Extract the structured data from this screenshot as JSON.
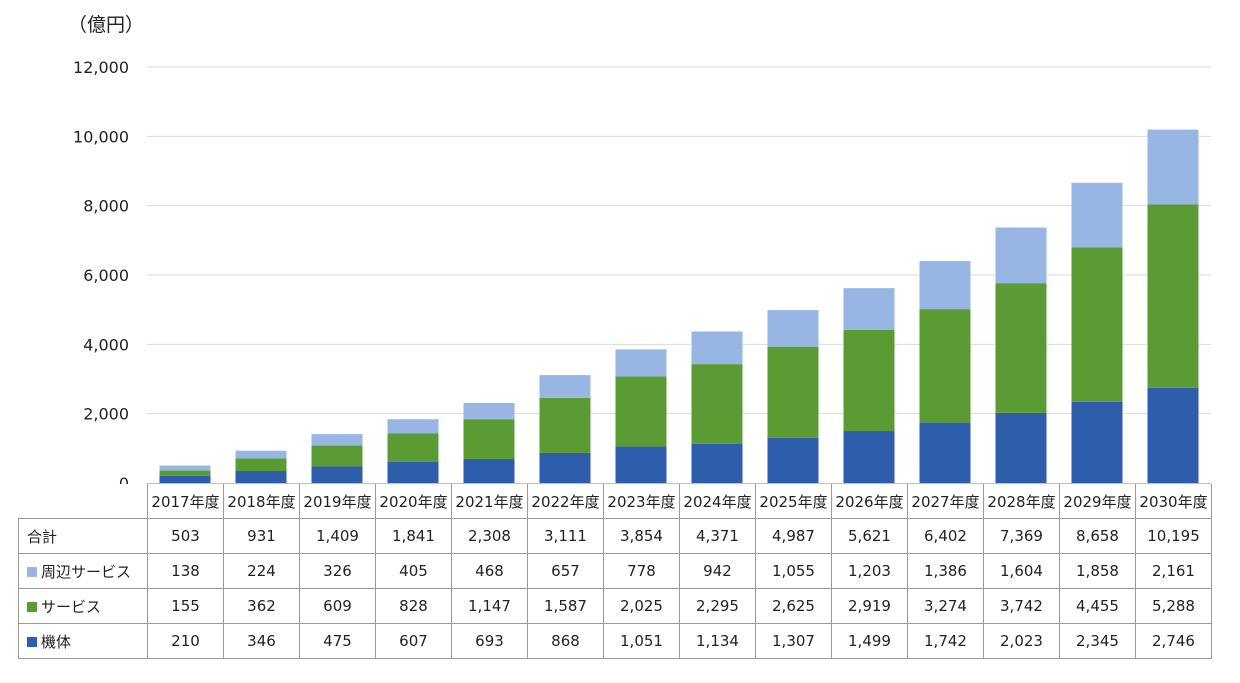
{
  "unit_label": "（億円）",
  "chart_data": {
    "type": "bar",
    "stacked": true,
    "ylim": [
      0,
      12000
    ],
    "yticks": [
      0,
      2000,
      4000,
      6000,
      8000,
      10000,
      12000
    ],
    "ytick_labels": [
      "0",
      "2,000",
      "4,000",
      "6,000",
      "8,000",
      "10,000",
      "12,000"
    ],
    "grid": true,
    "categories": [
      "2017年度",
      "2018年度",
      "2019年度",
      "2020年度",
      "2021年度",
      "2022年度",
      "2023年度",
      "2024年度",
      "2025年度",
      "2026年度",
      "2027年度",
      "2028年度",
      "2029年度",
      "2030年度"
    ],
    "series": [
      {
        "name": "機体",
        "color": "#2e5eab",
        "values": [
          210,
          346,
          475,
          607,
          693,
          868,
          1051,
          1134,
          1307,
          1499,
          1742,
          2023,
          2345,
          2746
        ]
      },
      {
        "name": "サービス",
        "color": "#5b9b34",
        "values": [
          155,
          362,
          609,
          828,
          1147,
          1587,
          2025,
          2295,
          2625,
          2919,
          3274,
          3742,
          4455,
          5288
        ]
      },
      {
        "name": "周辺サービス",
        "color": "#97b6e3",
        "values": [
          138,
          224,
          326,
          405,
          468,
          657,
          778,
          942,
          1055,
          1203,
          1386,
          1604,
          1858,
          2161
        ]
      }
    ],
    "total": {
      "name": "合計",
      "values": [
        503,
        931,
        1409,
        1841,
        2308,
        3111,
        3854,
        4371,
        4987,
        5621,
        6402,
        7369,
        8658,
        10195
      ]
    }
  }
}
